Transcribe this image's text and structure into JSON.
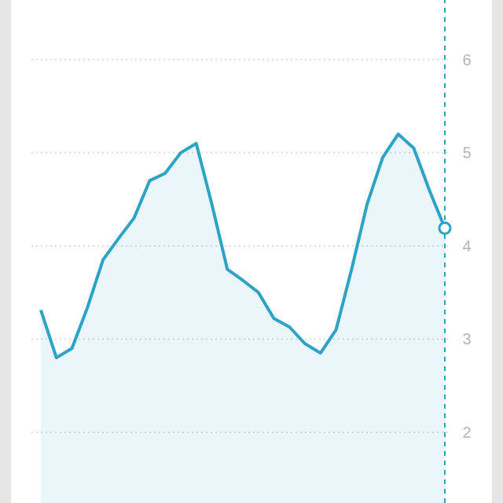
{
  "chart_data": {
    "type": "area",
    "tick_labels": "y",
    "grid": "y",
    "marker": "none",
    "line_style": "solid",
    "categories": [
      null,
      null,
      null,
      null,
      null,
      null,
      null,
      null,
      null,
      null,
      null,
      null,
      null,
      null,
      null,
      null,
      null,
      null,
      null,
      null,
      null,
      null,
      null,
      null,
      null,
      null,
      null
    ],
    "series": [
      {
        "color": "#2fa3c6",
        "values": [
          3.31,
          2.8,
          2.9,
          3.34,
          3.85,
          4.08,
          4.3,
          4.7,
          4.78,
          5.0,
          5.1,
          4.45,
          3.75,
          3.63,
          3.5,
          3.22,
          3.13,
          2.95,
          2.85,
          3.1,
          3.75,
          4.45,
          4.95,
          5.2,
          5.05,
          4.6,
          4.19
        ]
      }
    ],
    "ylim": [
      1.24,
      6.64
    ],
    "yticks": [
      2,
      3,
      4,
      5,
      6
    ]
  }
}
